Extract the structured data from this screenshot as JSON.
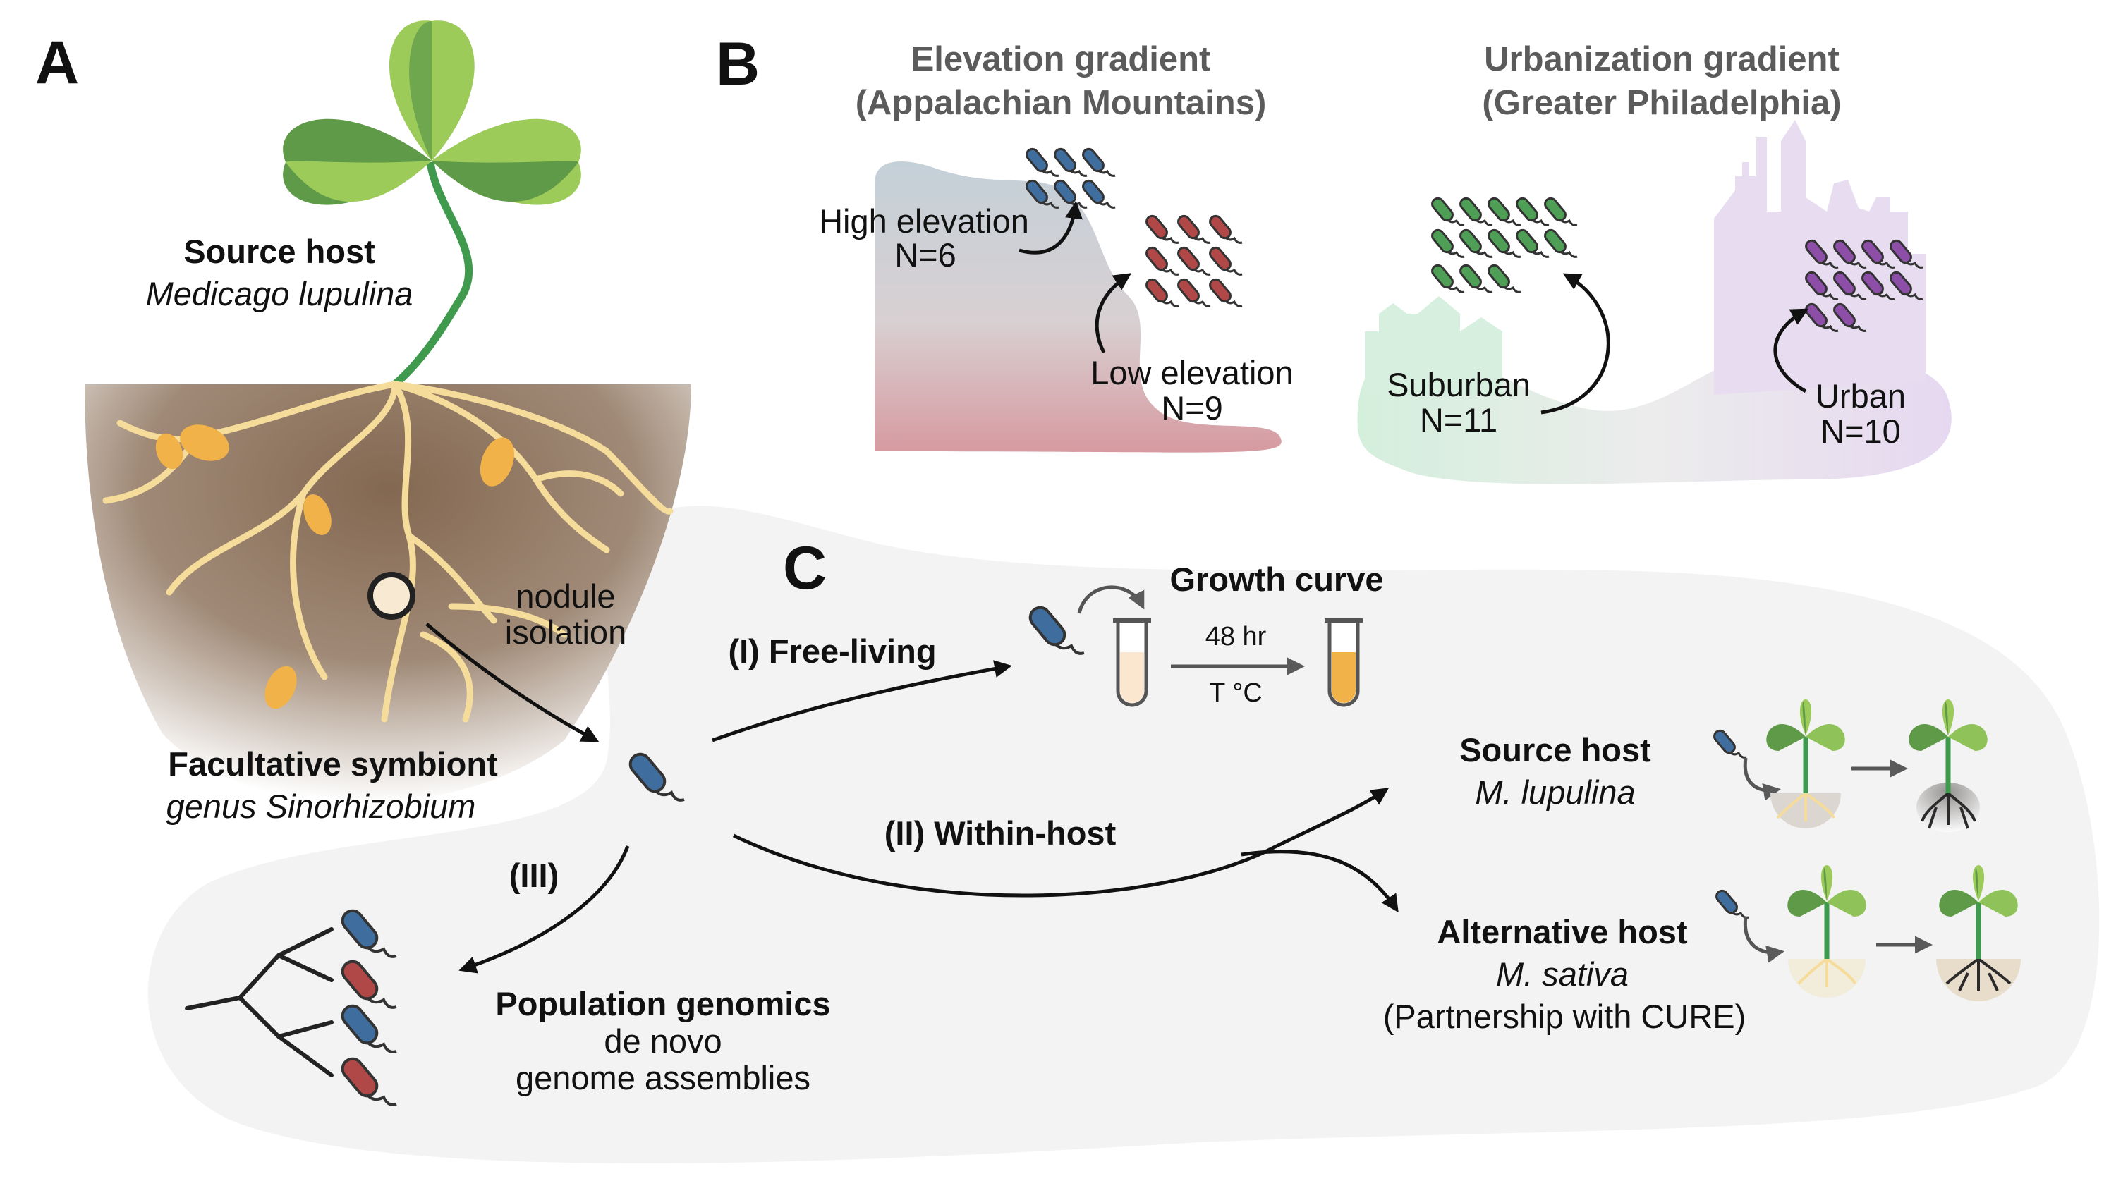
{
  "panels": {
    "a": "A",
    "b": "B",
    "c": "C"
  },
  "panel_a": {
    "source_host_title": "Source host",
    "source_host_species": "Medicago lupulina",
    "nodule_line1": "nodule",
    "nodule_line2": "isolation",
    "symbiont_title": "Facultative symbiont",
    "symbiont_genus": "genus Sinorhizobium"
  },
  "panel_b": {
    "elevation_title_line1": "Elevation gradient",
    "elevation_title_line2": "(Appalachian Mountains)",
    "high_label": "High elevation",
    "high_n": "N=6",
    "low_label": "Low elevation",
    "low_n": "N=9",
    "urban_title_line1": "Urbanization gradient",
    "urban_title_line2": "(Greater Philadelphia)",
    "suburban_label": "Suburban",
    "suburban_n": "N=11",
    "urban_label": "Urban",
    "urban_n": "N=10"
  },
  "panel_c": {
    "free_living": "(I) Free-living",
    "growth_curve": "Growth curve",
    "time_label": "48 hr",
    "temp_label": "T °C",
    "within_host": "(II) Within-host",
    "genomics_branch": "(III)",
    "source_host_title": "Source host",
    "source_host_species": "M. lupulina",
    "alt_host_title": "Alternative host",
    "alt_host_species": "M. sativa",
    "alt_host_note": "(Partnership with CURE)",
    "genomics_title": "Population genomics",
    "genomics_line2": "de novo",
    "genomics_line3": "genome assemblies"
  },
  "colors": {
    "leaf_dark": "#5f9a48",
    "leaf_light": "#9ccb5a",
    "stem": "#3f9a4e",
    "soil": "#7d6048",
    "root": "#f6dc9a",
    "nodule": "#f2b24a",
    "bacterium_blue": "#3e6d9e",
    "bacterium_red": "#b04848",
    "bacterium_green": "#4e9e56",
    "bacterium_purple": "#8d4ea8",
    "mountain_top": "#c3cfd6",
    "mountain_bottom": "#d99ea3",
    "suburb": "#d7efde",
    "city": "#e7dcf0",
    "panel_c_bg": "#f3f3f3"
  }
}
